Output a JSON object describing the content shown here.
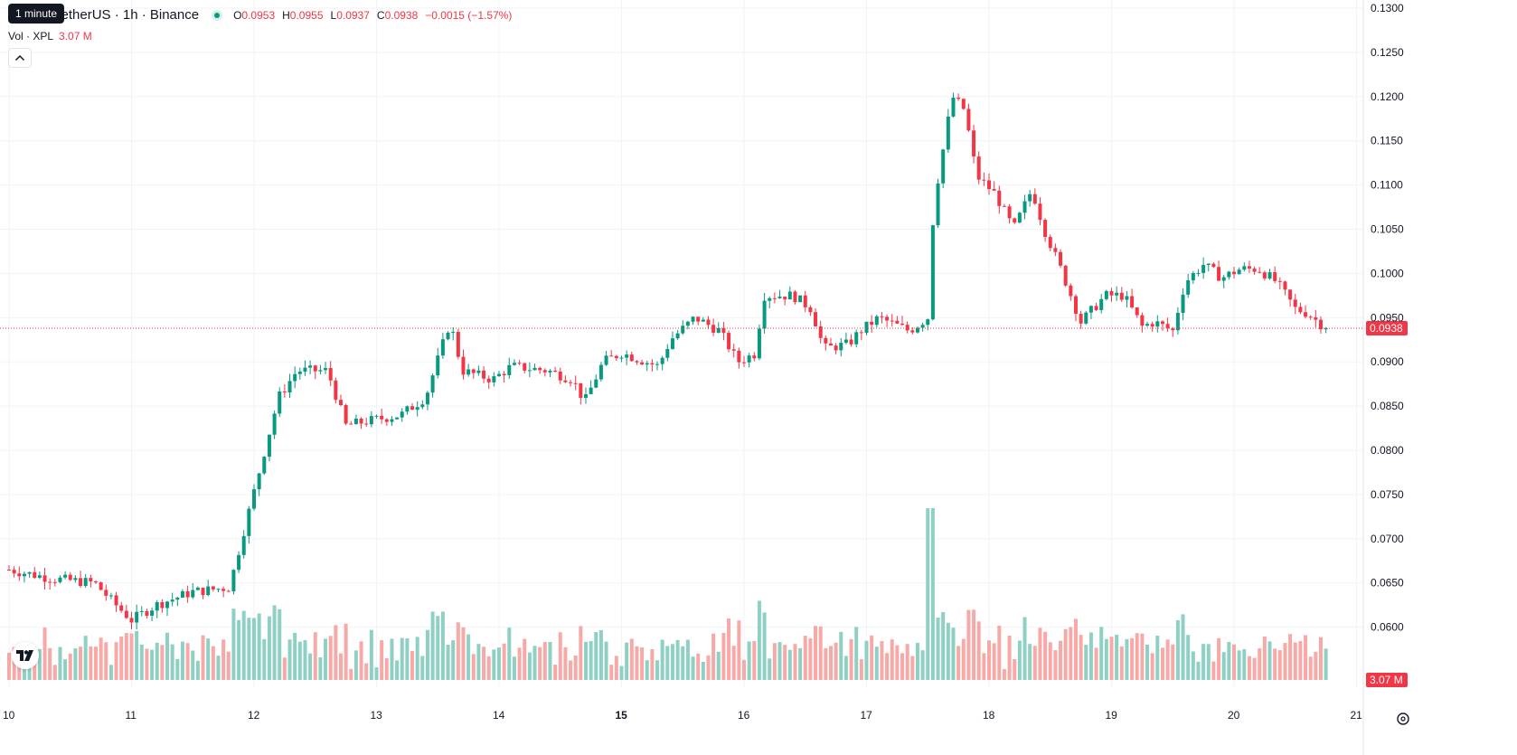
{
  "header": {
    "symbol_visible": "TetherUS · 1h · Binance",
    "tooltip": "1 minute",
    "ohlc": [
      {
        "k": "O",
        "v": "0.0953"
      },
      {
        "k": "H",
        "v": "0.0955"
      },
      {
        "k": "L",
        "v": "0.0937"
      },
      {
        "k": "C",
        "v": "0.0938"
      }
    ],
    "change": "−0.0015 (−1.57%)",
    "volume_label": "Vol · XPL",
    "volume_value": "3.07 M"
  },
  "colors": {
    "up": "#089981",
    "down": "#f23645",
    "up_volume": "#8fd0c4",
    "down_volume": "#f7a9a7",
    "grid": "#f0f3fa",
    "price_line": "#f23645"
  },
  "icons": {
    "logo": "tradingview-logo-icon",
    "collapse": "chevron-up-icon",
    "settings": "gear-icon"
  },
  "chart_data": {
    "type": "candlestick",
    "interval": "1h",
    "x_tick_labels": [
      "10",
      "11",
      "12",
      "13",
      "14",
      "15",
      "16",
      "17",
      "18",
      "19",
      "20",
      "21"
    ],
    "y_tick_labels": [
      "0.1300",
      "0.1250",
      "0.1200",
      "0.1150",
      "0.1100",
      "0.1050",
      "0.1000",
      "0.0950",
      "0.0900",
      "0.0850",
      "0.0800",
      "0.0750",
      "0.0700",
      "0.0650",
      "0.0600"
    ],
    "ylim": [
      0.0545,
      0.1303
    ],
    "last_price": 0.0938,
    "last_price_label": "0.0938",
    "last_volume_label": "3.07 M",
    "x_start_day": 10,
    "x_end_day": 21,
    "candles_start_day": 10.0,
    "anchor_closes": [
      [
        10.0,
        0.0665
      ],
      [
        10.35,
        0.0655
      ],
      [
        10.7,
        0.065
      ],
      [
        10.85,
        0.0628
      ],
      [
        11.0,
        0.0608
      ],
      [
        11.2,
        0.0625
      ],
      [
        11.5,
        0.064
      ],
      [
        11.8,
        0.0645
      ],
      [
        11.9,
        0.07
      ],
      [
        12.05,
        0.078
      ],
      [
        12.2,
        0.086
      ],
      [
        12.35,
        0.089
      ],
      [
        12.6,
        0.089
      ],
      [
        12.75,
        0.0828
      ],
      [
        13.0,
        0.0835
      ],
      [
        13.2,
        0.084
      ],
      [
        13.4,
        0.086
      ],
      [
        13.6,
        0.0945
      ],
      [
        13.7,
        0.089
      ],
      [
        13.95,
        0.088
      ],
      [
        14.1,
        0.0895
      ],
      [
        14.4,
        0.089
      ],
      [
        14.6,
        0.088
      ],
      [
        14.7,
        0.0855
      ],
      [
        14.85,
        0.09
      ],
      [
        15.0,
        0.091
      ],
      [
        15.3,
        0.0895
      ],
      [
        15.4,
        0.0925
      ],
      [
        15.6,
        0.095
      ],
      [
        15.8,
        0.0935
      ],
      [
        15.95,
        0.09
      ],
      [
        16.1,
        0.091
      ],
      [
        16.15,
        0.0975
      ],
      [
        16.4,
        0.0975
      ],
      [
        16.55,
        0.096
      ],
      [
        16.65,
        0.0915
      ],
      [
        16.85,
        0.092
      ],
      [
        16.95,
        0.0935
      ],
      [
        17.1,
        0.095
      ],
      [
        17.35,
        0.0935
      ],
      [
        17.5,
        0.095
      ],
      [
        17.55,
        0.108
      ],
      [
        17.7,
        0.12
      ],
      [
        17.8,
        0.1185
      ],
      [
        17.9,
        0.111
      ],
      [
        18.05,
        0.109
      ],
      [
        18.2,
        0.105
      ],
      [
        18.35,
        0.1095
      ],
      [
        18.45,
        0.105
      ],
      [
        18.6,
        0.1
      ],
      [
        18.75,
        0.0945
      ],
      [
        18.95,
        0.0975
      ],
      [
        19.1,
        0.0975
      ],
      [
        19.25,
        0.094
      ],
      [
        19.35,
        0.0945
      ],
      [
        19.5,
        0.0935
      ],
      [
        19.6,
        0.099
      ],
      [
        19.75,
        0.101
      ],
      [
        19.9,
        0.0995
      ],
      [
        20.05,
        0.1005
      ],
      [
        20.2,
        0.1005
      ],
      [
        20.35,
        0.099
      ],
      [
        20.5,
        0.096
      ],
      [
        20.6,
        0.0955
      ],
      [
        20.75,
        0.0938
      ]
    ],
    "volume_max_ratio": 0.3,
    "volume_spike_days": [
      17.5,
      17.55
    ]
  }
}
